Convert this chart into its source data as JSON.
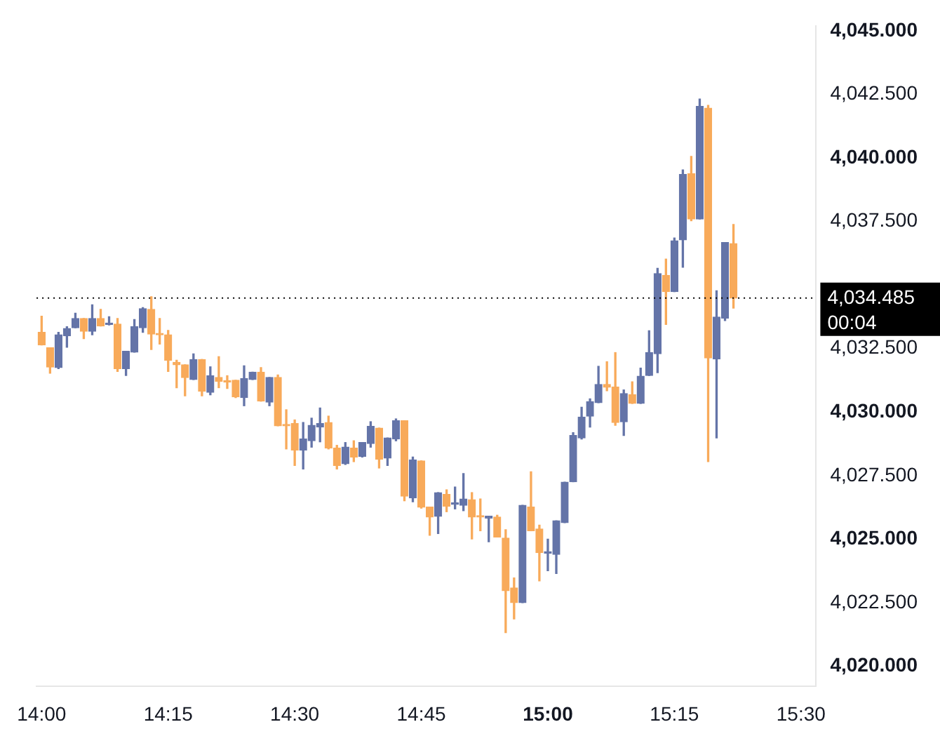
{
  "chart_data": {
    "type": "candlestick",
    "x": [
      14,
      14.0167,
      14.0333,
      14.05,
      14.0667,
      14.0833,
      14.1,
      14.1167,
      14.1333,
      14.15,
      14.1667,
      14.1833,
      14.2,
      14.2167,
      14.2333,
      14.25,
      14.2667,
      14.2833,
      14.3,
      14.3167,
      14.3333,
      14.35,
      14.3667,
      14.3833,
      14.4,
      14.4167,
      14.4333,
      14.45,
      14.4667,
      14.4833,
      14.5,
      14.5167,
      14.5333,
      14.55,
      14.5667,
      14.5833,
      14.6,
      14.6167,
      14.6333,
      14.65,
      14.6667,
      14.6833,
      14.7,
      14.7167,
      14.7333,
      14.75,
      14.7667,
      14.7833,
      14.8,
      14.8167,
      14.8333,
      14.85,
      14.8667,
      14.8833,
      14.9,
      14.9167,
      14.9333,
      14.95,
      14.9667,
      14.9833,
      15,
      15.0167,
      15.0333,
      15.05,
      15.0667,
      15.0833,
      15.1,
      15.1167,
      15.1333,
      15.15,
      15.1667,
      15.1833,
      15.2,
      15.2167,
      15.2333,
      15.25,
      15.2667,
      15.2833,
      15.3,
      15.3167,
      15.3333,
      15.35,
      15.3667
    ],
    "ohlc": [
      [
        4033.14,
        4033.77,
        4032.64,
        4032.64
      ],
      [
        4032.53,
        4032.53,
        4031.53,
        4031.77
      ],
      [
        4031.75,
        4033.14,
        4031.71,
        4033.04
      ],
      [
        4033.0,
        4033.36,
        4032.55,
        4033.29
      ],
      [
        4033.32,
        4033.89,
        4033.32,
        4033.68
      ],
      [
        4033.68,
        4033.68,
        4032.89,
        4033.18
      ],
      [
        4033.18,
        4034.22,
        4033.04,
        4033.68
      ],
      [
        4033.68,
        4034.04,
        4033.39,
        4033.39
      ],
      [
        4033.45,
        4033.75,
        4033.43,
        4033.48
      ],
      [
        4033.46,
        4033.68,
        4031.6,
        4031.71
      ],
      [
        4031.71,
        4032.39,
        4031.44,
        4032.39
      ],
      [
        4032.36,
        4033.64,
        4032.36,
        4033.36
      ],
      [
        4033.32,
        4034.11,
        4033.14,
        4034.07
      ],
      [
        4034.04,
        4034.54,
        4032.46,
        4033.07
      ],
      [
        4033.07,
        4033.68,
        4032.68,
        4033.04
      ],
      [
        4033.04,
        4033.21,
        4031.6,
        4032.04
      ],
      [
        4031.96,
        4032.04,
        4030.96,
        4031.86
      ],
      [
        4031.86,
        4031.86,
        4030.64,
        4031.36
      ],
      [
        4031.28,
        4032.29,
        4031.28,
        4032.07
      ],
      [
        4032.07,
        4032.07,
        4030.64,
        4030.82
      ],
      [
        4030.78,
        4031.78,
        4030.68,
        4031.43
      ],
      [
        4031.36,
        4032.18,
        4030.96,
        4031.21
      ],
      [
        4031.21,
        4031.43,
        4030.93,
        4031.18
      ],
      [
        4031.25,
        4031.25,
        4030.57,
        4030.6
      ],
      [
        4030.57,
        4031.82,
        4030.25,
        4031.32
      ],
      [
        4031.28,
        4031.57,
        4031.28,
        4031.57
      ],
      [
        4031.57,
        4031.75,
        4030.43,
        4030.43
      ],
      [
        4030.39,
        4031.36,
        4030.25,
        4031.36
      ],
      [
        4031.36,
        4031.46,
        4029.46,
        4029.46
      ],
      [
        4029.48,
        4030.09,
        4028.55,
        4029.46
      ],
      [
        4029.55,
        4029.69,
        4027.9,
        4028.51
      ],
      [
        4028.51,
        4029.59,
        4027.76,
        4028.94
      ],
      [
        4028.87,
        4029.76,
        4028.62,
        4029.48
      ],
      [
        4029.41,
        4030.16,
        4028.83,
        4029.55
      ],
      [
        4029.59,
        4029.84,
        4028.55,
        4028.58
      ],
      [
        4028.58,
        4028.69,
        4027.76,
        4027.9
      ],
      [
        4027.97,
        4028.8,
        4027.94,
        4028.62
      ],
      [
        4028.58,
        4028.87,
        4028.05,
        4028.23
      ],
      [
        4028.26,
        4028.8,
        4028.23,
        4028.8
      ],
      [
        4028.76,
        4029.62,
        4028.62,
        4029.44
      ],
      [
        4029.37,
        4029.37,
        4027.8,
        4028.15
      ],
      [
        4028.19,
        4028.98,
        4027.9,
        4028.98
      ],
      [
        4028.94,
        4029.73,
        4028.87,
        4029.66
      ],
      [
        4029.66,
        4029.66,
        4026.51,
        4026.69
      ],
      [
        4026.62,
        4028.23,
        4026.47,
        4028.12
      ],
      [
        4028.08,
        4028.08,
        4026.22,
        4026.26
      ],
      [
        4026.26,
        4026.26,
        4025.15,
        4025.87
      ],
      [
        4025.9,
        4026.83,
        4025.22,
        4026.83
      ],
      [
        4026.76,
        4026.94,
        4026.08,
        4026.3
      ],
      [
        4026.37,
        4027.05,
        4026.19,
        4026.39
      ],
      [
        4026.33,
        4027.58,
        4026.12,
        4026.58
      ],
      [
        4026.55,
        4026.83,
        4025.01,
        4025.87
      ],
      [
        4025.9,
        4026.58,
        4025.33,
        4025.87
      ],
      [
        4025.83,
        4025.9,
        4024.9,
        4025.9
      ],
      [
        4025.87,
        4025.94,
        4025.08,
        4025.08
      ],
      [
        4025.04,
        4025.37,
        4021.32,
        4022.97
      ],
      [
        4023.08,
        4023.47,
        4021.86,
        4022.5
      ],
      [
        4022.5,
        4026.33,
        4022.5,
        4026.33
      ],
      [
        4026.26,
        4027.65,
        4025.33,
        4025.33
      ],
      [
        4025.4,
        4025.55,
        4023.36,
        4024.47
      ],
      [
        4024.45,
        4025.0,
        4023.76,
        4024.5
      ],
      [
        4024.4,
        4025.72,
        4023.65,
        4025.72
      ],
      [
        4025.65,
        4027.24,
        4025.65,
        4027.24
      ],
      [
        4027.26,
        4029.19,
        4027.26,
        4029.08
      ],
      [
        4028.98,
        4030.19,
        4028.94,
        4029.8
      ],
      [
        4029.84,
        4030.52,
        4029.41,
        4030.41
      ],
      [
        4030.37,
        4031.8,
        4030.37,
        4031.09
      ],
      [
        4031.09,
        4031.98,
        4030.84,
        4030.98
      ],
      [
        4030.98,
        4032.34,
        4029.48,
        4029.59
      ],
      [
        4029.62,
        4030.87,
        4029.08,
        4030.73
      ],
      [
        4030.69,
        4031.19,
        4030.34,
        4030.34
      ],
      [
        4030.34,
        4031.73,
        4030.34,
        4031.41
      ],
      [
        4031.44,
        4033.2,
        4031.44,
        4032.34
      ],
      [
        4032.3,
        4035.66,
        4031.55,
        4035.45
      ],
      [
        4035.38,
        4036.02,
        4033.45,
        4034.74
      ],
      [
        4034.74,
        4036.85,
        4034.74,
        4036.74
      ],
      [
        4036.78,
        4039.53,
        4035.7,
        4039.35
      ],
      [
        4039.38,
        4040.06,
        4037.53,
        4037.6
      ],
      [
        4037.6,
        4042.32,
        4037.6,
        4042.03
      ],
      [
        4041.96,
        4042.07,
        4028.05,
        4032.13
      ],
      [
        4032.09,
        4034.77,
        4028.98,
        4033.74
      ],
      [
        4033.7,
        4036.67,
        4033.6,
        4036.67
      ],
      [
        4036.63,
        4037.38,
        4034.09,
        4034.485
      ]
    ],
    "colors": [
      "#f8aa5a",
      "#f8aa5a",
      "#6474a8",
      "#6474a8",
      "#6474a8",
      "#f8aa5a",
      "#6474a8",
      "#f8aa5a",
      "#6474a8",
      "#f8aa5a",
      "#6474a8",
      "#6474a8",
      "#6474a8",
      "#f8aa5a",
      "#f8aa5a",
      "#f8aa5a",
      "#f8aa5a",
      "#f8aa5a",
      "#6474a8",
      "#f8aa5a",
      "#6474a8",
      "#f8aa5a",
      "#f8aa5a",
      "#f8aa5a",
      "#6474a8",
      "#6474a8",
      "#f8aa5a",
      "#6474a8",
      "#f8aa5a",
      "#f8aa5a",
      "#f8aa5a",
      "#6474a8",
      "#6474a8",
      "#6474a8",
      "#f8aa5a",
      "#f8aa5a",
      "#6474a8",
      "#f8aa5a",
      "#6474a8",
      "#6474a8",
      "#f8aa5a",
      "#6474a8",
      "#6474a8",
      "#f8aa5a",
      "#6474a8",
      "#f8aa5a",
      "#f8aa5a",
      "#6474a8",
      "#f8aa5a",
      "#6474a8",
      "#6474a8",
      "#f8aa5a",
      "#f8aa5a",
      "#6474a8",
      "#f8aa5a",
      "#f8aa5a",
      "#f8aa5a",
      "#6474a8",
      "#f8aa5a",
      "#f8aa5a",
      "#6474a8",
      "#6474a8",
      "#6474a8",
      "#6474a8",
      "#6474a8",
      "#6474a8",
      "#6474a8",
      "#f8aa5a",
      "#f8aa5a",
      "#6474a8",
      "#f8aa5a",
      "#6474a8",
      "#6474a8",
      "#6474a8",
      "#f8aa5a",
      "#6474a8",
      "#6474a8",
      "#f8aa5a",
      "#6474a8",
      "#f8aa5a",
      "#6474a8",
      "#6474a8",
      "#f8aa5a"
    ],
    "xlim": [
      13.99,
      15.53
    ],
    "xticks": [
      {
        "value": 14,
        "label": "14:00"
      },
      {
        "value": 14.25,
        "label": "14:15"
      },
      {
        "value": 14.5,
        "label": "14:30"
      },
      {
        "value": 14.75,
        "label": "14:45"
      },
      {
        "value": 15,
        "label": "15:00"
      },
      {
        "value": 15.25,
        "label": "15:15"
      },
      {
        "value": 15.5,
        "label": "15:30"
      }
    ],
    "ylim": [
      4019.2,
      4045.2
    ],
    "yticks": [
      {
        "value": 4020,
        "label": "4,020.000"
      },
      {
        "value": 4022.5,
        "label": "4,022.500"
      },
      {
        "value": 4025,
        "label": "4,025.000"
      },
      {
        "value": 4027.5,
        "label": "4,027.500"
      },
      {
        "value": 4030,
        "label": "4,030.000"
      },
      {
        "value": 4032.5,
        "label": "4,032.500"
      },
      {
        "value": 4037.5,
        "label": "4,037.500"
      },
      {
        "value": 4040,
        "label": "4,040.000"
      },
      {
        "value": 4042.5,
        "label": "4,042.500"
      },
      {
        "value": 4045,
        "label": "4,045.000"
      }
    ],
    "ref_lines": [
      {
        "axis": "y",
        "value": 4034.485,
        "label": "4,034.485",
        "color": "#000000",
        "line_style": "dotted"
      }
    ],
    "annotations": [
      "00:04"
    ],
    "grid": false,
    "legend": false
  }
}
